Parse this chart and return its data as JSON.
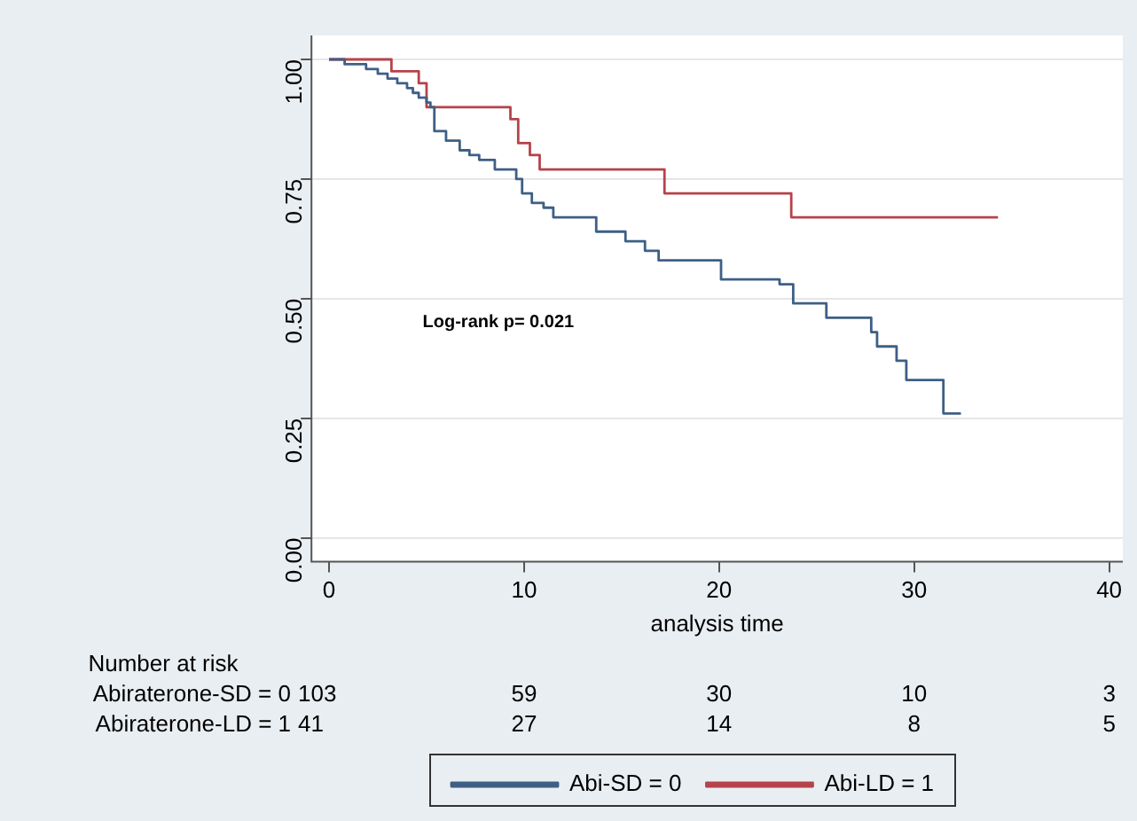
{
  "chart_data": {
    "type": "step",
    "xlabel": "analysis time",
    "xlim": [
      -0.9,
      40.7
    ],
    "xticks": [
      0,
      10,
      20,
      30,
      40
    ],
    "ylim": [
      -0.05,
      1.05
    ],
    "yticks": [
      {
        "value": 0,
        "label": "0.00"
      },
      {
        "value": 0.25,
        "label": "0.25"
      },
      {
        "value": 0.5,
        "label": "0.50"
      },
      {
        "value": 0.75,
        "label": "0.75"
      },
      {
        "value": 1,
        "label": "1.00"
      }
    ],
    "grid": "y",
    "legend": "bottom",
    "series": [
      {
        "name": "Abi-SD = 0",
        "color": "#3e5f86",
        "x": [
          0,
          0.8,
          1.9,
          2.5,
          3,
          3.5,
          4,
          4.3,
          4.6,
          5,
          5.2,
          5.4,
          6,
          6.7,
          7.2,
          7.7,
          8.5,
          9.6,
          9.9,
          10.4,
          11,
          11.5,
          13.7,
          15.2,
          16.2,
          16.9,
          20.1,
          23.1,
          23.8,
          25.5,
          27.8,
          28.1,
          29.1,
          29.6,
          31.5,
          32.4
        ],
        "values": [
          1,
          0.99,
          0.98,
          0.97,
          0.96,
          0.95,
          0.94,
          0.93,
          0.92,
          0.91,
          0.9,
          0.85,
          0.83,
          0.81,
          0.8,
          0.79,
          0.77,
          0.75,
          0.72,
          0.7,
          0.69,
          0.67,
          0.64,
          0.62,
          0.6,
          0.58,
          0.54,
          0.53,
          0.49,
          0.46,
          0.43,
          0.4,
          0.37,
          0.33,
          0.26,
          0.26
        ]
      },
      {
        "name": "Abi-LD = 1",
        "color": "#b5434a",
        "x": [
          0,
          3.2,
          4.6,
          5,
          9.3,
          9.7,
          10.3,
          10.8,
          17.2,
          23.7,
          34.3
        ],
        "values": [
          1,
          0.975,
          0.95,
          0.9,
          0.875,
          0.825,
          0.8,
          0.77,
          0.72,
          0.67,
          0.67
        ]
      }
    ],
    "annotations": [
      "Log-rank p= 0.021",
      "Number at risk",
      "Abiraterone-SD = 0",
      "103",
      "59",
      "30",
      "10",
      "3",
      "Abiraterone-LD = 1",
      "41",
      "27",
      "14",
      "8",
      "5"
    ]
  }
}
